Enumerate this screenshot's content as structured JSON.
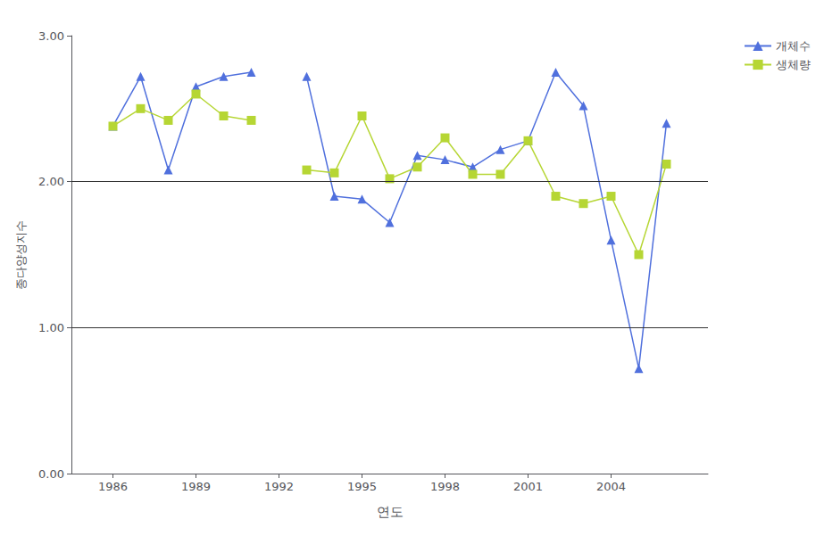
{
  "chart_data": {
    "type": "line",
    "xlabel": "연도",
    "ylabel": "종다양성지수",
    "x": [
      1986,
      1987,
      1988,
      1989,
      1990,
      1991,
      1992,
      1993,
      1994,
      1995,
      1996,
      1997,
      1998,
      1999,
      2000,
      2001,
      2002,
      2003,
      2004,
      2005,
      2006
    ],
    "series": [
      {
        "name": "개체수",
        "marker": "triangle",
        "values": [
          2.38,
          2.72,
          2.08,
          2.65,
          2.72,
          2.75,
          null,
          2.72,
          1.9,
          1.88,
          1.72,
          2.18,
          2.15,
          2.1,
          2.22,
          2.28,
          2.75,
          2.52,
          1.6,
          0.72,
          2.4
        ]
      },
      {
        "name": "생체량",
        "marker": "square",
        "values": [
          2.38,
          2.5,
          2.42,
          2.6,
          2.45,
          2.42,
          null,
          2.08,
          2.06,
          2.45,
          2.02,
          2.1,
          2.3,
          2.05,
          2.05,
          2.28,
          1.9,
          1.85,
          1.9,
          1.5,
          2.12
        ]
      }
    ],
    "xlim": [
      1984.5,
      2007.5
    ],
    "xticks": [
      1986,
      1989,
      1992,
      1995,
      1998,
      2001,
      2004
    ],
    "ylim": [
      0.0,
      3.0
    ],
    "yticks": [
      {
        "value": 0,
        "label": "0.00"
      },
      {
        "value": 1,
        "label": "1.00"
      },
      {
        "value": 2,
        "label": "2.00"
      },
      {
        "value": 3,
        "label": "3.00"
      }
    ],
    "hlines": [
      1.0,
      2.0
    ],
    "legend": "upper right",
    "grid": false
  }
}
